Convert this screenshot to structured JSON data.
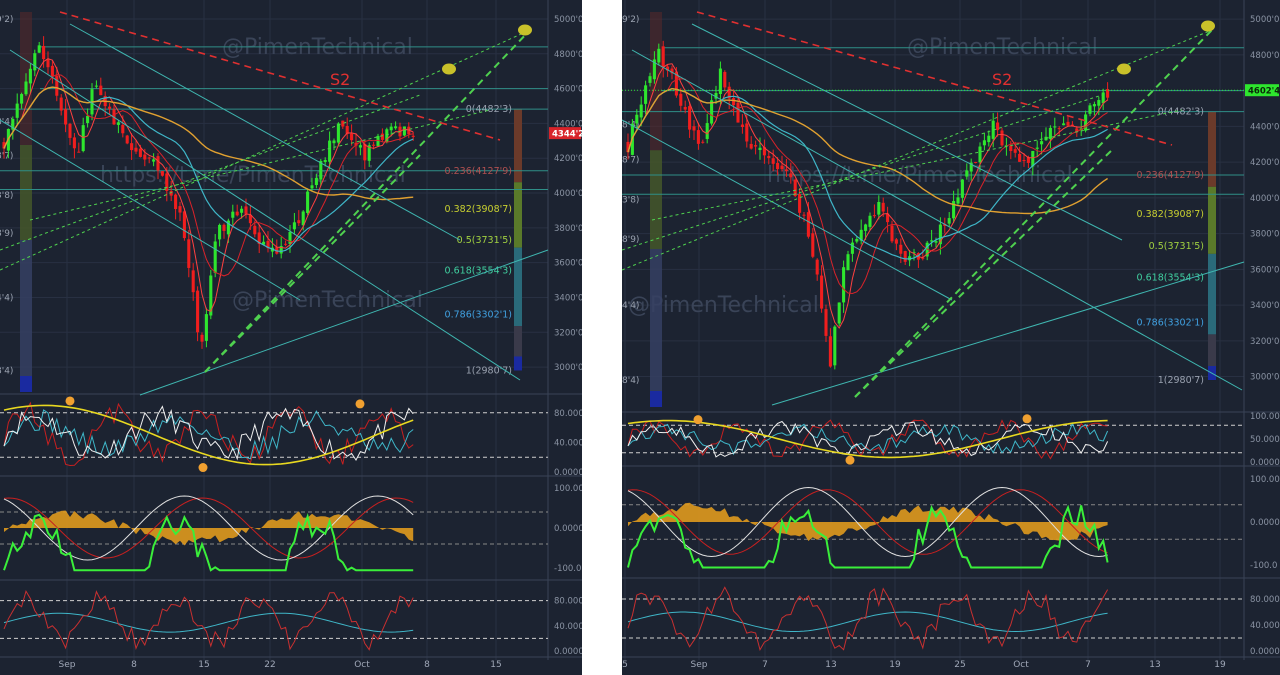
{
  "watermarks": [
    "@PimenTechnical",
    "https://t.me/PimenTechnical"
  ],
  "colors": {
    "background": "#1c2331",
    "grid": "#283042",
    "candle_up": "#2ee62e",
    "candle_down": "#f01e1e",
    "ma_red": "#d8232a",
    "ma_cyan": "#3fb6c8",
    "ma_orange": "#e0a030",
    "channel": "#4fd14f",
    "resistance": "#e03030",
    "target": "#c9c12a",
    "oscillator_fill": "#e09a1e"
  },
  "chart_data": [
    {
      "type": "line",
      "name": "left",
      "price_axis": {
        "ticks": [
          "5000'0",
          "4800'0",
          "4600'0",
          "4400'0",
          "4200'0",
          "4000'0",
          "3800'0",
          "3600'0",
          "3400'0",
          "3200'0",
          "3000'0"
        ],
        "ylim": [
          2880,
          5040
        ],
        "last_price_label": "4344'2",
        "last_price": 4344.2
      },
      "date_axis": [
        "Sep",
        "8",
        "15",
        "22",
        "Oct",
        "8",
        "15"
      ],
      "fib_levels": [
        {
          "label": "0(4482'3)",
          "value": 4482.3
        },
        {
          "label": "0.236(4127'9)",
          "value": 4127.9
        },
        {
          "label": "0.382(3908'7)",
          "value": 3908.7
        },
        {
          "label": "0.5(3731'5)",
          "value": 3731.5
        },
        {
          "label": "0.618(3554'3)",
          "value": 3554.3
        },
        {
          "label": "0.786(3302'1)",
          "value": 3302.1
        },
        {
          "label": "1(2980'7)",
          "value": 2980.7
        }
      ],
      "edge_labels": [
        "9'2)",
        "8'4)",
        "8'7)",
        "3'8)",
        "8'9)",
        "4'4)",
        "8'4)"
      ],
      "annotation": "S2",
      "osc1_ticks": [
        "80.000",
        "40.000",
        "0.0000"
      ],
      "osc2_ticks": [
        "100.00",
        "0.0000",
        "-100.0"
      ],
      "osc3_ticks": [
        "80.000",
        "40.000",
        "0.0000"
      ]
    },
    {
      "type": "line",
      "name": "right",
      "price_axis": {
        "ticks": [
          "5000'0",
          "4800'0",
          "4600'0",
          "4400'0",
          "4200'0",
          "4000'0",
          "3800'0",
          "3600'0",
          "3400'0",
          "3200'0",
          "3000'0"
        ],
        "ylim": [
          2880,
          5040
        ],
        "last_price_label": "4602'4",
        "last_price": 4602.4
      },
      "date_axis": [
        "5",
        "Sep",
        "7",
        "13",
        "19",
        "25",
        "Oct",
        "7",
        "13",
        "19"
      ],
      "fib_levels": [
        {
          "label": "0(4482'3)",
          "value": 4482.3
        },
        {
          "label": "0.236(4127'9)",
          "value": 4127.9
        },
        {
          "label": "0.382(3908'7)",
          "value": 3908.7
        },
        {
          "label": "0.5(3731'5)",
          "value": 3731.5
        },
        {
          "label": "0.618(3554'3)",
          "value": 3554.3
        },
        {
          "label": "0.786(3302'1)",
          "value": 3302.1
        },
        {
          "label": "1(2980'7)",
          "value": 2980.7
        }
      ],
      "edge_labels": [
        "9'2)",
        "8'4)",
        "8'7)",
        "3'8)",
        "8'9)",
        "4'4)",
        "8'4)"
      ],
      "annotation": "S2",
      "osc1_ticks": [
        "100.00",
        "50.000",
        "0.0000"
      ],
      "osc2_ticks": [
        "100.00",
        "0.0000",
        "-100.0"
      ],
      "osc3_ticks": [
        "80.000",
        "40.000",
        "0.0000"
      ]
    }
  ]
}
